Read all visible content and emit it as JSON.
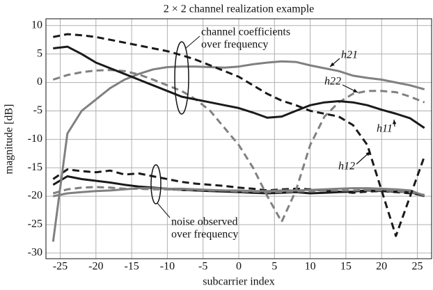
{
  "chart_data": {
    "type": "line",
    "title": "2 × 2 channel realization example",
    "xlabel": "subcarrier index",
    "ylabel": "magnitude [dB]",
    "x": [
      -26,
      -24,
      -22,
      -20,
      -18,
      -16,
      -14,
      -12,
      -10,
      -8,
      -6,
      -4,
      -2,
      0,
      2,
      4,
      6,
      8,
      10,
      12,
      14,
      16,
      18,
      20,
      22,
      24,
      26
    ],
    "xlim": [
      -27,
      27
    ],
    "xticks": [
      -25,
      -20,
      -15,
      -10,
      -5,
      0,
      5,
      10,
      15,
      20,
      25
    ],
    "ylim": [
      -31,
      11.2
    ],
    "yticks": [
      -30,
      -25,
      -20,
      -15,
      -10,
      -5,
      0,
      5,
      10
    ],
    "grid": true,
    "series": [
      {
        "name": "h21",
        "color": "#808080",
        "dash": false,
        "values": [
          -28,
          -9,
          -5,
          -3,
          -1,
          0.5,
          1.5,
          2.3,
          2.7,
          2.8,
          2.8,
          2.7,
          2.6,
          2.8,
          3.2,
          3.5,
          3.7,
          3.6,
          3.0,
          2.5,
          2.0,
          1.2,
          0.8,
          0.5,
          0,
          -0.5,
          -1.2
        ]
      },
      {
        "name": "h22",
        "color": "#808080",
        "dash": true,
        "values": [
          0.5,
          1.3,
          1.8,
          2.1,
          2.2,
          2.0,
          1.4,
          0.5,
          -0.5,
          -1.5,
          -3,
          -5,
          -8,
          -11,
          -15,
          -20,
          -24.5,
          -19,
          -11,
          -6,
          -3.5,
          -2,
          -1.5,
          -1.5,
          -1.7,
          -2.5,
          -3.5
        ]
      },
      {
        "name": "h11",
        "color": "#1a1a1a",
        "dash": false,
        "values": [
          6,
          6.3,
          5,
          3.5,
          2.5,
          1.5,
          0.5,
          -0.5,
          -1.5,
          -2.5,
          -3,
          -3.5,
          -4,
          -4.5,
          -5.3,
          -6.2,
          -6,
          -5,
          -4,
          -3.5,
          -3.3,
          -3.5,
          -4,
          -4.8,
          -5.5,
          -6.3,
          -8
        ]
      },
      {
        "name": "h12",
        "color": "#1a1a1a",
        "dash": true,
        "values": [
          8,
          8.5,
          8.3,
          8,
          7.5,
          7,
          6.5,
          6,
          5.5,
          4.8,
          4,
          3,
          2,
          1,
          -0.5,
          -2,
          -3.2,
          -4,
          -5,
          -5.5,
          -6,
          -7.5,
          -11,
          -19,
          -27,
          -20,
          -13
        ]
      },
      {
        "color": "#1a1a1a",
        "dash": true,
        "values": [
          -17,
          -15.3,
          -15.6,
          -15.8,
          -15.5,
          -16.2,
          -16,
          -16.5,
          -17,
          -17.5,
          -17.8,
          -18,
          -18.2,
          -18.5,
          -18.7,
          -19,
          -18.8,
          -18.7,
          -18.8,
          -19,
          -19.2,
          -19.4,
          -19.2,
          -19.1,
          -19.3,
          -19.5,
          -19.8
        ]
      },
      {
        "color": "#1a1a1a",
        "dash": false,
        "values": [
          -18,
          -16.5,
          -17,
          -17.3,
          -17.6,
          -18,
          -18.3,
          -18.5,
          -18.7,
          -18.9,
          -19,
          -19.1,
          -19.2,
          -19.3,
          -19.4,
          -19.5,
          -19.4,
          -19.3,
          -19.5,
          -19.4,
          -19.3,
          -19.2,
          -19,
          -19.1,
          -19.2,
          -19.3,
          -20
        ]
      },
      {
        "color": "#808080",
        "dash": true,
        "values": [
          -19.5,
          -18.8,
          -18.5,
          -18.4,
          -18.5,
          -18.7,
          -18.7,
          -18.8,
          -18.8,
          -18.9,
          -18.9,
          -19,
          -19,
          -19.2,
          -19.2,
          -19.3,
          -19.3,
          -19.2,
          -19.1,
          -19,
          -19,
          -19,
          -18.9,
          -19,
          -19.1,
          -19.3,
          -19.8
        ]
      },
      {
        "color": "#808080",
        "dash": false,
        "values": [
          -20,
          -19.5,
          -19.3,
          -19.1,
          -19,
          -18.8,
          -18.6,
          -18.6,
          -18.7,
          -18.7,
          -18.8,
          -18.9,
          -19,
          -19,
          -19.1,
          -19.1,
          -19,
          -19,
          -18.9,
          -18.8,
          -18.7,
          -18.6,
          -18.6,
          -18.7,
          -18.8,
          -19,
          -19.9
        ]
      }
    ],
    "annotations": [
      {
        "lines": [
          "channel coefficients",
          "over frequency"
        ]
      },
      {
        "lines": [
          "noise observed",
          "over frequency"
        ]
      }
    ]
  }
}
